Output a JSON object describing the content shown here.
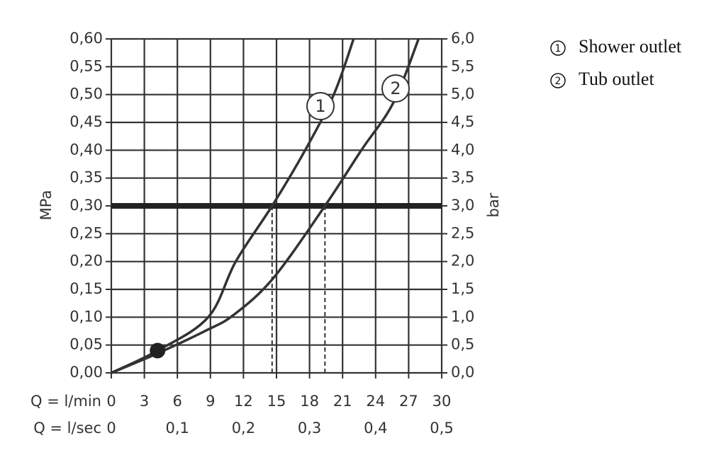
{
  "chart_data": {
    "type": "line",
    "y_label": "MPa",
    "y2_label": "bar",
    "x_label": "Q = l/min",
    "x2_label": "Q = l/sec",
    "xlim": [
      0,
      30
    ],
    "xticks": [
      0,
      3,
      6,
      9,
      12,
      15,
      18,
      21,
      24,
      27,
      30
    ],
    "x2lim": [
      0,
      0.5
    ],
    "x2ticks": [
      0,
      {
        "value": 0.1,
        "label": "0,1"
      },
      {
        "value": 0.2,
        "label": "0,2"
      },
      {
        "value": 0.3,
        "label": "0,3"
      },
      {
        "value": 0.4,
        "label": "0,4"
      },
      {
        "value": 0.5,
        "label": "0,5"
      }
    ],
    "ylim": [
      0,
      0.6
    ],
    "yticks": [
      {
        "value": 0,
        "label": "0,00"
      },
      {
        "value": 0.05,
        "label": "0,05"
      },
      {
        "value": 0.1,
        "label": "0,10"
      },
      {
        "value": 0.15,
        "label": "0,15"
      },
      {
        "value": 0.2,
        "label": "0,20"
      },
      {
        "value": 0.25,
        "label": "0,25"
      },
      {
        "value": 0.3,
        "label": "0,30"
      },
      {
        "value": 0.35,
        "label": "0,35"
      },
      {
        "value": 0.4,
        "label": "0,40"
      },
      {
        "value": 0.45,
        "label": "0,45"
      },
      {
        "value": 0.5,
        "label": "0,50"
      },
      {
        "value": 0.55,
        "label": "0,55"
      },
      {
        "value": 0.6,
        "label": "0,60"
      }
    ],
    "y2lim": [
      0,
      6
    ],
    "y2ticks": [
      {
        "value": 0,
        "label": "0,0"
      },
      {
        "value": 0.5,
        "label": "0,5"
      },
      {
        "value": 1,
        "label": "1,0"
      },
      {
        "value": 1.5,
        "label": "1,5"
      },
      {
        "value": 2,
        "label": "2,0"
      },
      {
        "value": 2.5,
        "label": "2,5"
      },
      {
        "value": 3,
        "label": "3,0"
      },
      {
        "value": 3.5,
        "label": "3,5"
      },
      {
        "value": 4,
        "label": "4,0"
      },
      {
        "value": 4.5,
        "label": "4,5"
      },
      {
        "value": 5,
        "label": "5,0"
      },
      {
        "value": 5.5,
        "label": "5,5"
      },
      {
        "value": 6,
        "label": "6,0"
      }
    ],
    "grid": true,
    "legend": "right",
    "reference_line": 0.3,
    "drop_lines": [
      14.6,
      19.4
    ],
    "highlight_point": {
      "x": 4.2,
      "y": 0.04
    },
    "series": [
      {
        "name": "Shower outlet",
        "label": "1",
        "color": "#333333",
        "x": [
          0,
          4.2,
          8.8,
          11.3,
          14.6,
          17.6,
          20.2,
          22.0
        ],
        "values": [
          0,
          0.04,
          0.1,
          0.2,
          0.3,
          0.4,
          0.5,
          0.6
        ]
      },
      {
        "name": "Tub outlet",
        "label": "2",
        "color": "#333333",
        "x": [
          0,
          4.2,
          8.6,
          11.1,
          14.7,
          19.4,
          22.7,
          25.6,
          27.9
        ],
        "values": [
          0,
          0.035,
          0.076,
          0.104,
          0.17,
          0.3,
          0.4,
          0.485,
          0.6
        ]
      }
    ]
  }
}
